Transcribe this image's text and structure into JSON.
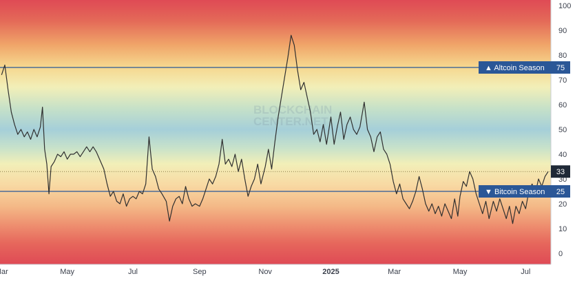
{
  "chart_data": {
    "type": "line",
    "watermark": [
      "BLOCKCHAIN",
      "CENTER.NET"
    ],
    "ylim": [
      0,
      100
    ],
    "y_ticks": [
      0,
      10,
      20,
      30,
      40,
      50,
      60,
      70,
      80,
      90,
      100
    ],
    "x_ticks": [
      {
        "date": "2024-03-01",
        "label": "Mar"
      },
      {
        "date": "2024-05-01",
        "label": "May"
      },
      {
        "date": "2024-07-01",
        "label": "Jul"
      },
      {
        "date": "2024-09-01",
        "label": "Sep"
      },
      {
        "date": "2024-11-01",
        "label": "Nov"
      },
      {
        "date": "2025-01-01",
        "label": "2025"
      },
      {
        "date": "2025-03-01",
        "label": "Mar"
      },
      {
        "date": "2025-05-01",
        "label": "May"
      },
      {
        "date": "2025-07-01",
        "label": "Jul"
      }
    ],
    "x_range": [
      "2024-03-01",
      "2025-07-23"
    ],
    "thresholds": [
      {
        "label": "Altcoin Season",
        "value": 75,
        "marker": "▲",
        "color": "#2b5797"
      },
      {
        "label": "Bitcoin Season",
        "value": 25,
        "marker": "▼",
        "color": "#2b5797"
      }
    ],
    "current": {
      "value": 33,
      "color": "#1f2937"
    },
    "series": [
      {
        "color": "#2f2f2f",
        "data": [
          [
            "2024-03-01",
            72
          ],
          [
            "2024-03-04",
            76
          ],
          [
            "2024-03-07",
            66
          ],
          [
            "2024-03-10",
            57
          ],
          [
            "2024-03-13",
            52
          ],
          [
            "2024-03-16",
            48
          ],
          [
            "2024-03-19",
            50
          ],
          [
            "2024-03-22",
            47
          ],
          [
            "2024-03-25",
            49
          ],
          [
            "2024-03-28",
            46
          ],
          [
            "2024-03-31",
            50
          ],
          [
            "2024-04-03",
            47
          ],
          [
            "2024-04-06",
            51
          ],
          [
            "2024-04-08",
            59
          ],
          [
            "2024-04-10",
            42
          ],
          [
            "2024-04-12",
            36
          ],
          [
            "2024-04-14",
            24
          ],
          [
            "2024-04-16",
            35
          ],
          [
            "2024-04-19",
            37
          ],
          [
            "2024-04-22",
            40
          ],
          [
            "2024-04-25",
            39
          ],
          [
            "2024-04-28",
            41
          ],
          [
            "2024-05-01",
            38
          ],
          [
            "2024-05-04",
            40
          ],
          [
            "2024-05-07",
            40
          ],
          [
            "2024-05-10",
            41
          ],
          [
            "2024-05-13",
            39
          ],
          [
            "2024-05-16",
            41
          ],
          [
            "2024-05-19",
            43
          ],
          [
            "2024-05-22",
            41
          ],
          [
            "2024-05-25",
            43
          ],
          [
            "2024-05-28",
            41
          ],
          [
            "2024-06-01",
            37
          ],
          [
            "2024-06-04",
            34
          ],
          [
            "2024-06-07",
            28
          ],
          [
            "2024-06-10",
            23
          ],
          [
            "2024-06-13",
            25
          ],
          [
            "2024-06-16",
            21
          ],
          [
            "2024-06-19",
            20
          ],
          [
            "2024-06-22",
            24
          ],
          [
            "2024-06-25",
            19
          ],
          [
            "2024-06-28",
            22
          ],
          [
            "2024-07-01",
            23
          ],
          [
            "2024-07-04",
            22
          ],
          [
            "2024-07-07",
            25
          ],
          [
            "2024-07-10",
            24
          ],
          [
            "2024-07-13",
            28
          ],
          [
            "2024-07-16",
            47
          ],
          [
            "2024-07-19",
            34
          ],
          [
            "2024-07-22",
            31
          ],
          [
            "2024-07-25",
            26
          ],
          [
            "2024-07-28",
            24
          ],
          [
            "2024-08-01",
            21
          ],
          [
            "2024-08-04",
            13
          ],
          [
            "2024-08-07",
            19
          ],
          [
            "2024-08-10",
            22
          ],
          [
            "2024-08-13",
            23
          ],
          [
            "2024-08-16",
            20
          ],
          [
            "2024-08-19",
            27
          ],
          [
            "2024-08-22",
            22
          ],
          [
            "2024-08-25",
            19
          ],
          [
            "2024-08-28",
            20
          ],
          [
            "2024-09-01",
            19
          ],
          [
            "2024-09-04",
            22
          ],
          [
            "2024-09-07",
            26
          ],
          [
            "2024-09-10",
            30
          ],
          [
            "2024-09-13",
            28
          ],
          [
            "2024-09-16",
            31
          ],
          [
            "2024-09-19",
            36
          ],
          [
            "2024-09-22",
            46
          ],
          [
            "2024-09-25",
            36
          ],
          [
            "2024-09-28",
            38
          ],
          [
            "2024-10-01",
            35
          ],
          [
            "2024-10-04",
            40
          ],
          [
            "2024-10-07",
            33
          ],
          [
            "2024-10-10",
            38
          ],
          [
            "2024-10-13",
            30
          ],
          [
            "2024-10-16",
            23
          ],
          [
            "2024-10-19",
            27
          ],
          [
            "2024-10-22",
            30
          ],
          [
            "2024-10-25",
            36
          ],
          [
            "2024-10-28",
            28
          ],
          [
            "2024-11-01",
            35
          ],
          [
            "2024-11-04",
            42
          ],
          [
            "2024-11-07",
            34
          ],
          [
            "2024-11-10",
            45
          ],
          [
            "2024-11-13",
            55
          ],
          [
            "2024-11-16",
            63
          ],
          [
            "2024-11-19",
            71
          ],
          [
            "2024-11-22",
            79
          ],
          [
            "2024-11-25",
            88
          ],
          [
            "2024-11-28",
            84
          ],
          [
            "2024-12-01",
            74
          ],
          [
            "2024-12-04",
            66
          ],
          [
            "2024-12-07",
            69
          ],
          [
            "2024-12-10",
            63
          ],
          [
            "2024-12-13",
            57
          ],
          [
            "2024-12-16",
            48
          ],
          [
            "2024-12-19",
            50
          ],
          [
            "2024-12-22",
            45
          ],
          [
            "2024-12-25",
            52
          ],
          [
            "2024-12-28",
            44
          ],
          [
            "2025-01-01",
            55
          ],
          [
            "2025-01-04",
            44
          ],
          [
            "2025-01-07",
            51
          ],
          [
            "2025-01-10",
            57
          ],
          [
            "2025-01-13",
            46
          ],
          [
            "2025-01-16",
            52
          ],
          [
            "2025-01-19",
            55
          ],
          [
            "2025-01-22",
            50
          ],
          [
            "2025-01-25",
            48
          ],
          [
            "2025-01-28",
            51
          ],
          [
            "2025-02-01",
            61
          ],
          [
            "2025-02-04",
            50
          ],
          [
            "2025-02-07",
            47
          ],
          [
            "2025-02-10",
            41
          ],
          [
            "2025-02-13",
            47
          ],
          [
            "2025-02-16",
            49
          ],
          [
            "2025-02-19",
            42
          ],
          [
            "2025-02-22",
            40
          ],
          [
            "2025-02-25",
            36
          ],
          [
            "2025-02-28",
            29
          ],
          [
            "2025-03-03",
            24
          ],
          [
            "2025-03-06",
            28
          ],
          [
            "2025-03-09",
            22
          ],
          [
            "2025-03-12",
            20
          ],
          [
            "2025-03-15",
            18
          ],
          [
            "2025-03-18",
            21
          ],
          [
            "2025-03-21",
            25
          ],
          [
            "2025-03-24",
            31
          ],
          [
            "2025-03-27",
            26
          ],
          [
            "2025-03-30",
            20
          ],
          [
            "2025-04-02",
            17
          ],
          [
            "2025-04-05",
            20
          ],
          [
            "2025-04-08",
            16
          ],
          [
            "2025-04-11",
            19
          ],
          [
            "2025-04-14",
            15
          ],
          [
            "2025-04-17",
            20
          ],
          [
            "2025-04-20",
            17
          ],
          [
            "2025-04-23",
            14
          ],
          [
            "2025-04-26",
            22
          ],
          [
            "2025-04-29",
            15
          ],
          [
            "2025-05-01",
            23
          ],
          [
            "2025-05-04",
            29
          ],
          [
            "2025-05-07",
            27
          ],
          [
            "2025-05-10",
            33
          ],
          [
            "2025-05-13",
            30
          ],
          [
            "2025-05-16",
            24
          ],
          [
            "2025-05-19",
            20
          ],
          [
            "2025-05-22",
            16
          ],
          [
            "2025-05-25",
            21
          ],
          [
            "2025-05-28",
            14
          ],
          [
            "2025-06-01",
            21
          ],
          [
            "2025-06-04",
            17
          ],
          [
            "2025-06-07",
            22
          ],
          [
            "2025-06-10",
            18
          ],
          [
            "2025-06-13",
            14
          ],
          [
            "2025-06-16",
            19
          ],
          [
            "2025-06-19",
            12
          ],
          [
            "2025-06-22",
            19
          ],
          [
            "2025-06-25",
            16
          ],
          [
            "2025-06-28",
            21
          ],
          [
            "2025-07-01",
            18
          ],
          [
            "2025-07-04",
            25
          ],
          [
            "2025-07-07",
            28
          ],
          [
            "2025-07-10",
            24
          ],
          [
            "2025-07-13",
            30
          ],
          [
            "2025-07-16",
            27
          ],
          [
            "2025-07-19",
            31
          ],
          [
            "2025-07-22",
            33
          ]
        ]
      }
    ]
  }
}
